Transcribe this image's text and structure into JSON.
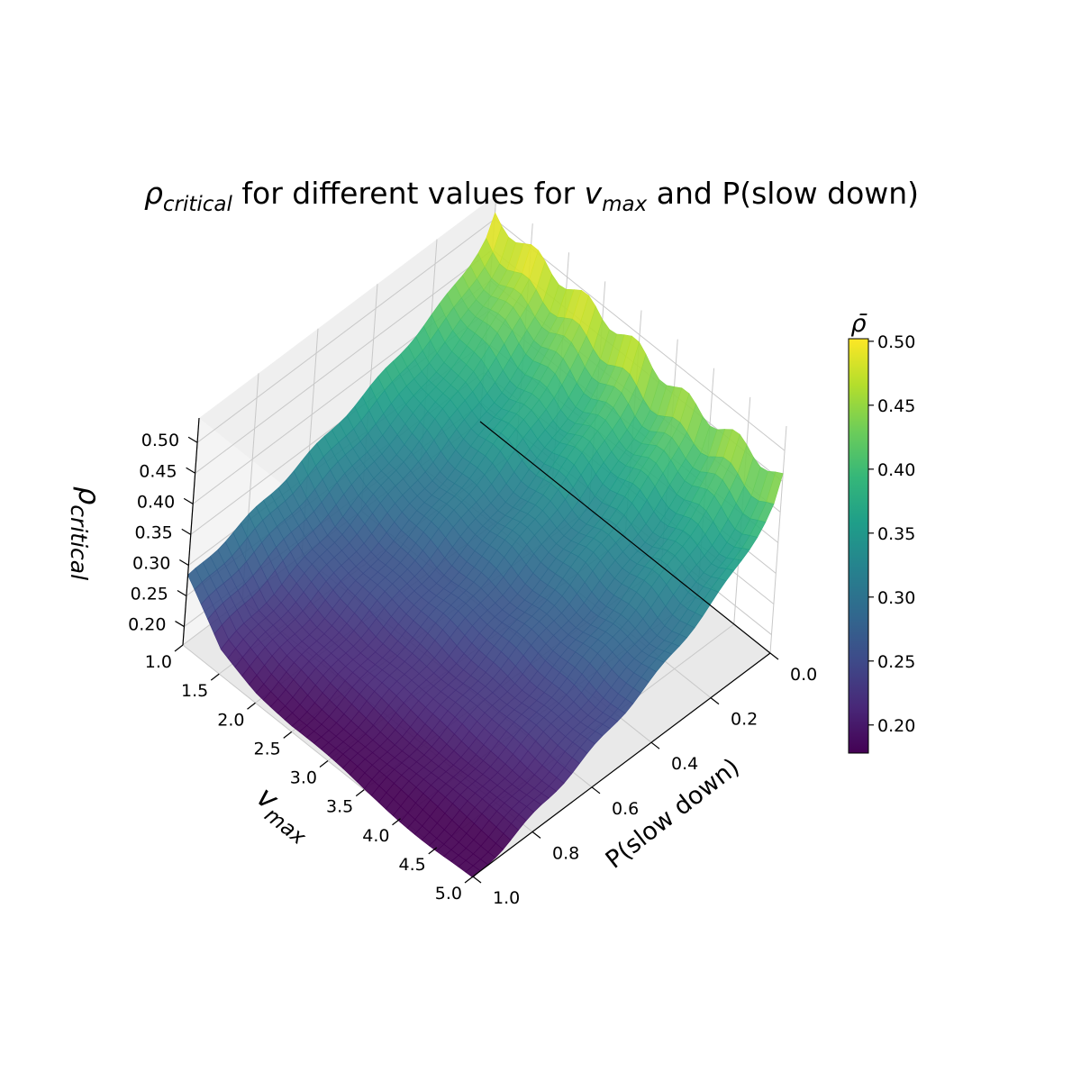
{
  "chart_data": {
    "type": "surface3d",
    "title": {
      "symbol": "ρ",
      "symbol_sub": "critical",
      "mid": " for different values for ",
      "var": "v",
      "var_sub": "max",
      "tail": " and P(slow down)"
    },
    "x_axis": {
      "label_main": "v",
      "label_sub": "max",
      "range": [
        1.0,
        5.0
      ],
      "ticks": [
        "1.0",
        "1.5",
        "2.0",
        "2.5",
        "3.0",
        "3.5",
        "4.0",
        "4.5",
        "5.0"
      ]
    },
    "y_axis": {
      "label": "P(slow down)",
      "range": [
        0.0,
        1.0
      ],
      "ticks": [
        "0.0",
        "0.2",
        "0.4",
        "0.6",
        "0.8",
        "1.0"
      ]
    },
    "z_axis": {
      "label_main": "ρ",
      "label_sub": "critical",
      "range": [
        0.17,
        0.54
      ],
      "ticks": [
        "0.20",
        "0.25",
        "0.30",
        "0.35",
        "0.40",
        "0.45",
        "0.50"
      ]
    },
    "colorbar": {
      "label": "ρ̄",
      "colormap": "viridis",
      "range": [
        0.178,
        0.502
      ],
      "ticks": [
        "0.20",
        "0.25",
        "0.30",
        "0.35",
        "0.40",
        "0.45",
        "0.50"
      ]
    },
    "surface_profile": {
      "p0_values": [
        0.505,
        0.5,
        0.49,
        0.48,
        0.475,
        0.465,
        0.46,
        0.455,
        0.45
      ],
      "p1_values": [
        0.28,
        0.21,
        0.19,
        0.18,
        0.175,
        0.17,
        0.168,
        0.166,
        0.165
      ],
      "description_rho_decreases_with_p": true
    },
    "grid": true
  }
}
